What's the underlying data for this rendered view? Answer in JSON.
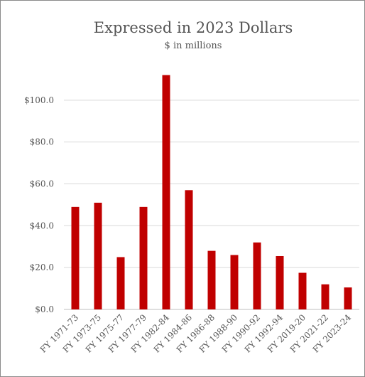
{
  "chart_data": {
    "type": "bar",
    "title": "Expressed in 2023 Dollars",
    "subtitle": "$ in millions",
    "categories": [
      "FY 1971-73",
      "FY 1973-75",
      "FY 1975-77",
      "FY 1977-79",
      "FY 1982-84",
      "FY 1984-86",
      "FY 1986-88",
      "FY 1988-90",
      "FY 1990-92",
      "FY 1992-94",
      "FY 2019-20",
      "FY 2021-22",
      "FY 2023-24"
    ],
    "values": [
      49,
      51,
      25,
      49,
      112,
      57,
      28,
      26,
      32,
      25.5,
      17.5,
      12,
      10.5
    ],
    "ylim": [
      0,
      120
    ],
    "yticks": [
      0,
      20,
      40,
      60,
      80,
      100
    ],
    "ytick_labels": [
      "$0.0",
      "$20.0",
      "$40.0",
      "$60.0",
      "$80.0",
      "$100.0"
    ],
    "grid": true,
    "bar_color": "#c00000",
    "grid_color": "#d9d9d9"
  }
}
